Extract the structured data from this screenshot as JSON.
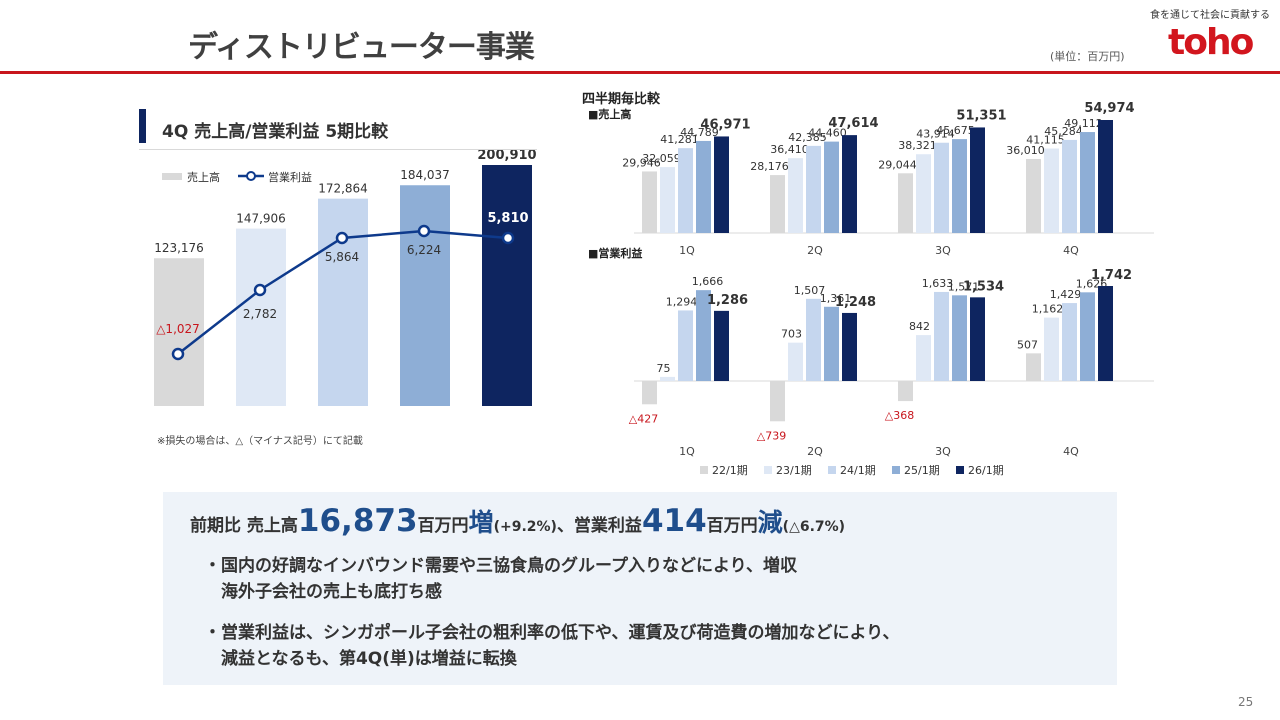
{
  "header": {
    "title": "ディストリビューター事業",
    "tagline": "食を通じて社会に貢献する",
    "logo": "toho",
    "unit": "(単位：百万円)",
    "page_number": "25"
  },
  "left_panel": {
    "title": "4Q 売上高/営業利益 5期比較",
    "note": "※損失の場合は、△（マイナス記号）にて記載"
  },
  "right_panel": {
    "title": "四半期毎比較"
  },
  "summary": {
    "prefix": "前期比  売上高",
    "sales_diff": "16,873",
    "unit1": "百万円",
    "inc": "増",
    "sales_pct": "(+9.2%)",
    "mid": "、営業利益",
    "op_diff": "414",
    "unit2": "百万円",
    "dec": "減",
    "op_pct": "(△6.7%)",
    "bullets": [
      [
        "・国内の好調なインバウンド需要や三協食鳥のグループ入りなどにより、増収",
        "　海外子会社の売上も底打ち感"
      ],
      [
        "・営業利益は、シンガポール子会社の粗利率の低下や、運賃及び荷造費の増加などにより、",
        "　減益となるも、第4Q(単)は増益に転換"
      ]
    ]
  },
  "colors": {
    "series": [
      "#d9d9d9",
      "#dfe8f5",
      "#c5d6ee",
      "#8eaed6",
      "#0e2560"
    ],
    "line": "#0e3a8c",
    "negative": "#c8161d",
    "accent": "#c8161d"
  },
  "chart_data": [
    {
      "type": "bar+line",
      "title": "4Q 売上高/営業利益 5期比較",
      "legend": [
        "売上高",
        "営業利益"
      ],
      "categories": [
        "22/1期",
        "23/1期",
        "24/1期",
        "25/1期",
        "26/1期"
      ],
      "bars": {
        "name": "売上高",
        "values": [
          123176,
          147906,
          172864,
          184037,
          200910
        ],
        "labels": [
          "123,176",
          "147,906",
          "172,864",
          "184,037",
          "200,910"
        ]
      },
      "line": {
        "name": "営業利益",
        "values": [
          -1027,
          2782,
          5864,
          6224,
          5810
        ],
        "labels": [
          "△1,027",
          "2,782",
          "5,864",
          "6,224",
          "5,810"
        ]
      }
    },
    {
      "type": "bar",
      "title": "売上高",
      "legend_label": "■売上高",
      "categories": [
        "1Q",
        "2Q",
        "3Q",
        "4Q"
      ],
      "series": [
        {
          "name": "22/1期",
          "values": [
            29946,
            28176,
            29044,
            36010
          ],
          "labels": [
            "29,946",
            "28,176",
            "29,044",
            "36,010"
          ]
        },
        {
          "name": "23/1期",
          "values": [
            32059,
            36410,
            38321,
            41115
          ],
          "labels": [
            "32,059",
            "36,410",
            "38,321",
            "41,115"
          ]
        },
        {
          "name": "24/1期",
          "values": [
            41281,
            42385,
            43914,
            45284
          ],
          "labels": [
            "41,281",
            "42,385",
            "43,914",
            "45,284"
          ]
        },
        {
          "name": "25/1期",
          "values": [
            44789,
            44460,
            45675,
            49112
          ],
          "labels": [
            "44,789",
            "44,460",
            "45,675",
            "49,112"
          ]
        },
        {
          "name": "26/1期",
          "values": [
            46971,
            47614,
            51351,
            54974
          ],
          "labels": [
            "46,971",
            "47,614",
            "51,351",
            "54,974"
          ]
        }
      ]
    },
    {
      "type": "bar",
      "title": "営業利益",
      "legend_label": "■営業利益",
      "categories": [
        "1Q",
        "2Q",
        "3Q",
        "4Q"
      ],
      "series": [
        {
          "name": "22/1期",
          "values": [
            -427,
            -739,
            -368,
            507
          ],
          "labels": [
            "△427",
            "△739",
            "△368",
            "507"
          ]
        },
        {
          "name": "23/1期",
          "values": [
            75,
            703,
            842,
            1162
          ],
          "labels": [
            "75",
            "703",
            "842",
            "1,162"
          ]
        },
        {
          "name": "24/1期",
          "values": [
            1294,
            1507,
            1633,
            1429
          ],
          "labels": [
            "1,294",
            "1,507",
            "1,633",
            "1,429"
          ]
        },
        {
          "name": "25/1期",
          "values": [
            1666,
            1361,
            1571,
            1626
          ],
          "labels": [
            "1,666",
            "1,361",
            "1,571",
            "1,626"
          ]
        },
        {
          "name": "26/1期",
          "values": [
            1286,
            1248,
            1534,
            1742
          ],
          "labels": [
            "1,286",
            "1,248",
            "1,534",
            "1,742"
          ]
        }
      ]
    }
  ]
}
